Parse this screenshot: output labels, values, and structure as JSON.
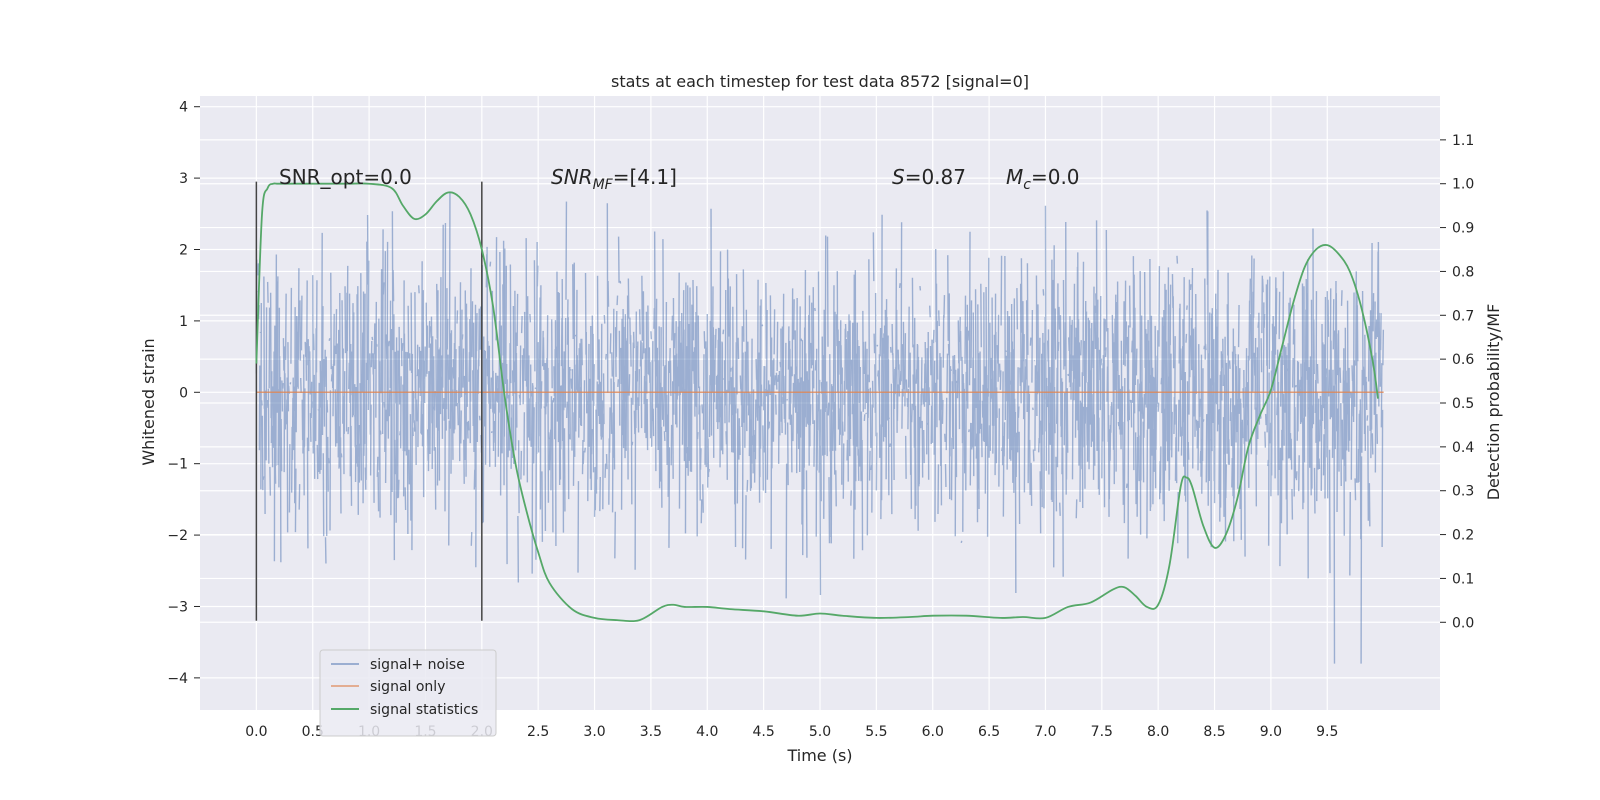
{
  "chart_data": {
    "type": "line",
    "title": "stats at each timestep for test data 8572 [signal=0]",
    "xlabel": "Time (s)",
    "ylabel": "Whitened strain",
    "y2label": "Detection probability/MF",
    "xlim": [
      -0.5,
      10.5
    ],
    "ylim": [
      -4.45,
      4.15
    ],
    "y2lim": [
      -0.2,
      1.2
    ],
    "xticks": [
      "0.0",
      "0.5",
      "1.0",
      "1.5",
      "2.0",
      "2.5",
      "3.0",
      "3.5",
      "4.0",
      "4.5",
      "5.0",
      "5.5",
      "6.0",
      "6.5",
      "7.0",
      "7.5",
      "8.0",
      "8.5",
      "9.0",
      "9.5"
    ],
    "yticks": [
      "−4",
      "−3",
      "−2",
      "−1",
      "0",
      "1",
      "2",
      "3",
      "4"
    ],
    "y2ticks": [
      "0.0",
      "0.1",
      "0.2",
      "0.3",
      "0.4",
      "0.5",
      "0.6",
      "0.7",
      "0.8",
      "0.9",
      "1.0",
      "1.1"
    ],
    "grid": true,
    "legend_position": "lower-left",
    "colors": {
      "signal_noise": "#4c72b0",
      "signal_only": "#dd8452",
      "signal_statistics": "#55a868",
      "background": "#eaeaf2"
    },
    "annotations": {
      "snr_opt": "SNR_opt=0.0",
      "snr_mf_italic": "SNR",
      "snr_mf_sub": "MF",
      "snr_mf_value": "=[4.1]",
      "s_italic": "S",
      "s_value": "=0.87",
      "mc_italic": "M",
      "mc_sub": "c",
      "mc_value": "=0.0"
    },
    "vertical_markers_x": [
      0.0,
      2.0
    ],
    "series": [
      {
        "name": "signal+ noise",
        "axis": "left",
        "x_range": [
          0.0,
          10.0
        ],
        "typical_abs": 1.8,
        "max_abs": 3.8,
        "note_values": "dense noise"
      },
      {
        "name": "signal only",
        "axis": "left",
        "x": [
          0.0,
          10.0
        ],
        "values": [
          0.0,
          0.0
        ]
      },
      {
        "name": "signal statistics",
        "axis": "right",
        "x": [
          0.0,
          0.05,
          0.1,
          0.15,
          0.2,
          0.4,
          0.6,
          0.8,
          1.0,
          1.2,
          1.3,
          1.4,
          1.5,
          1.6,
          1.7,
          1.8,
          1.9,
          2.0,
          2.1,
          2.2,
          2.3,
          2.4,
          2.5,
          2.6,
          2.8,
          3.0,
          3.2,
          3.4,
          3.6,
          3.7,
          3.8,
          4.0,
          4.2,
          4.5,
          4.8,
          5.0,
          5.2,
          5.5,
          5.8,
          6.0,
          6.3,
          6.6,
          6.8,
          7.0,
          7.2,
          7.4,
          7.6,
          7.7,
          7.8,
          7.9,
          8.0,
          8.1,
          8.2,
          8.25,
          8.3,
          8.4,
          8.5,
          8.6,
          8.7,
          8.8,
          8.9,
          9.0,
          9.1,
          9.2,
          9.3,
          9.4,
          9.5,
          9.6,
          9.7,
          9.8,
          9.9,
          9.95
        ],
        "values": [
          0.59,
          0.93,
          0.99,
          1.0,
          1.0,
          1.0,
          1.0,
          1.0,
          1.0,
          0.99,
          0.95,
          0.92,
          0.93,
          0.96,
          0.98,
          0.97,
          0.93,
          0.85,
          0.72,
          0.52,
          0.36,
          0.25,
          0.16,
          0.09,
          0.03,
          0.01,
          0.005,
          0.005,
          0.035,
          0.04,
          0.035,
          0.035,
          0.03,
          0.025,
          0.015,
          0.02,
          0.015,
          0.01,
          0.012,
          0.015,
          0.015,
          0.01,
          0.012,
          0.01,
          0.035,
          0.045,
          0.075,
          0.08,
          0.06,
          0.035,
          0.04,
          0.13,
          0.31,
          0.33,
          0.31,
          0.22,
          0.17,
          0.2,
          0.28,
          0.4,
          0.47,
          0.53,
          0.63,
          0.73,
          0.81,
          0.85,
          0.86,
          0.84,
          0.8,
          0.72,
          0.6,
          0.51
        ]
      }
    ]
  }
}
